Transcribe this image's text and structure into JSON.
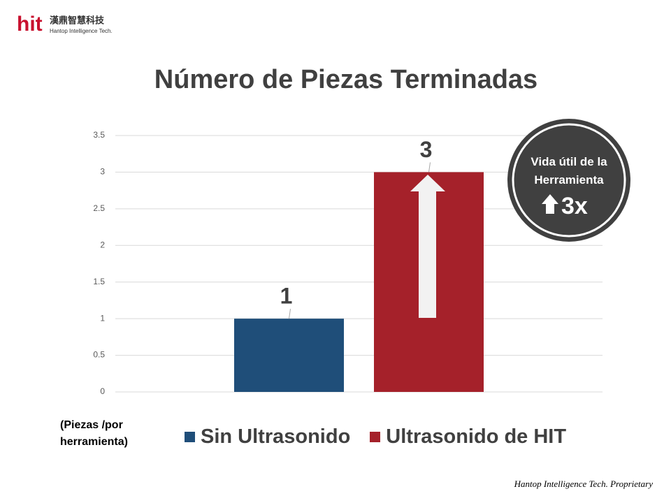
{
  "logo": {
    "mark": "hit",
    "name": "漢鼎智慧科技",
    "subtitle": "Hantop Intelligence Tech."
  },
  "chart_data": {
    "type": "bar",
    "title": "Número de Piezas Terminadas",
    "categories": [
      null
    ],
    "series": [
      {
        "name": "Sin Ultrasonido",
        "color": "#1f4e79",
        "values": [
          1
        ]
      },
      {
        "name": "Ultrasonido de HIT",
        "color": "#a5212a",
        "values": [
          3
        ]
      }
    ],
    "ylim": [
      0,
      3.5
    ],
    "yticks": [
      0,
      0.5,
      1,
      1.5,
      2,
      2.5,
      3,
      3.5
    ],
    "grid": true,
    "y_label": "(Piezas /por herramienta)",
    "legend": "bottom"
  },
  "badge": {
    "text": "Vida útil de la Herramienta",
    "value": "3x"
  },
  "footer": "Hantop Intelligence Tech. Proprietary"
}
